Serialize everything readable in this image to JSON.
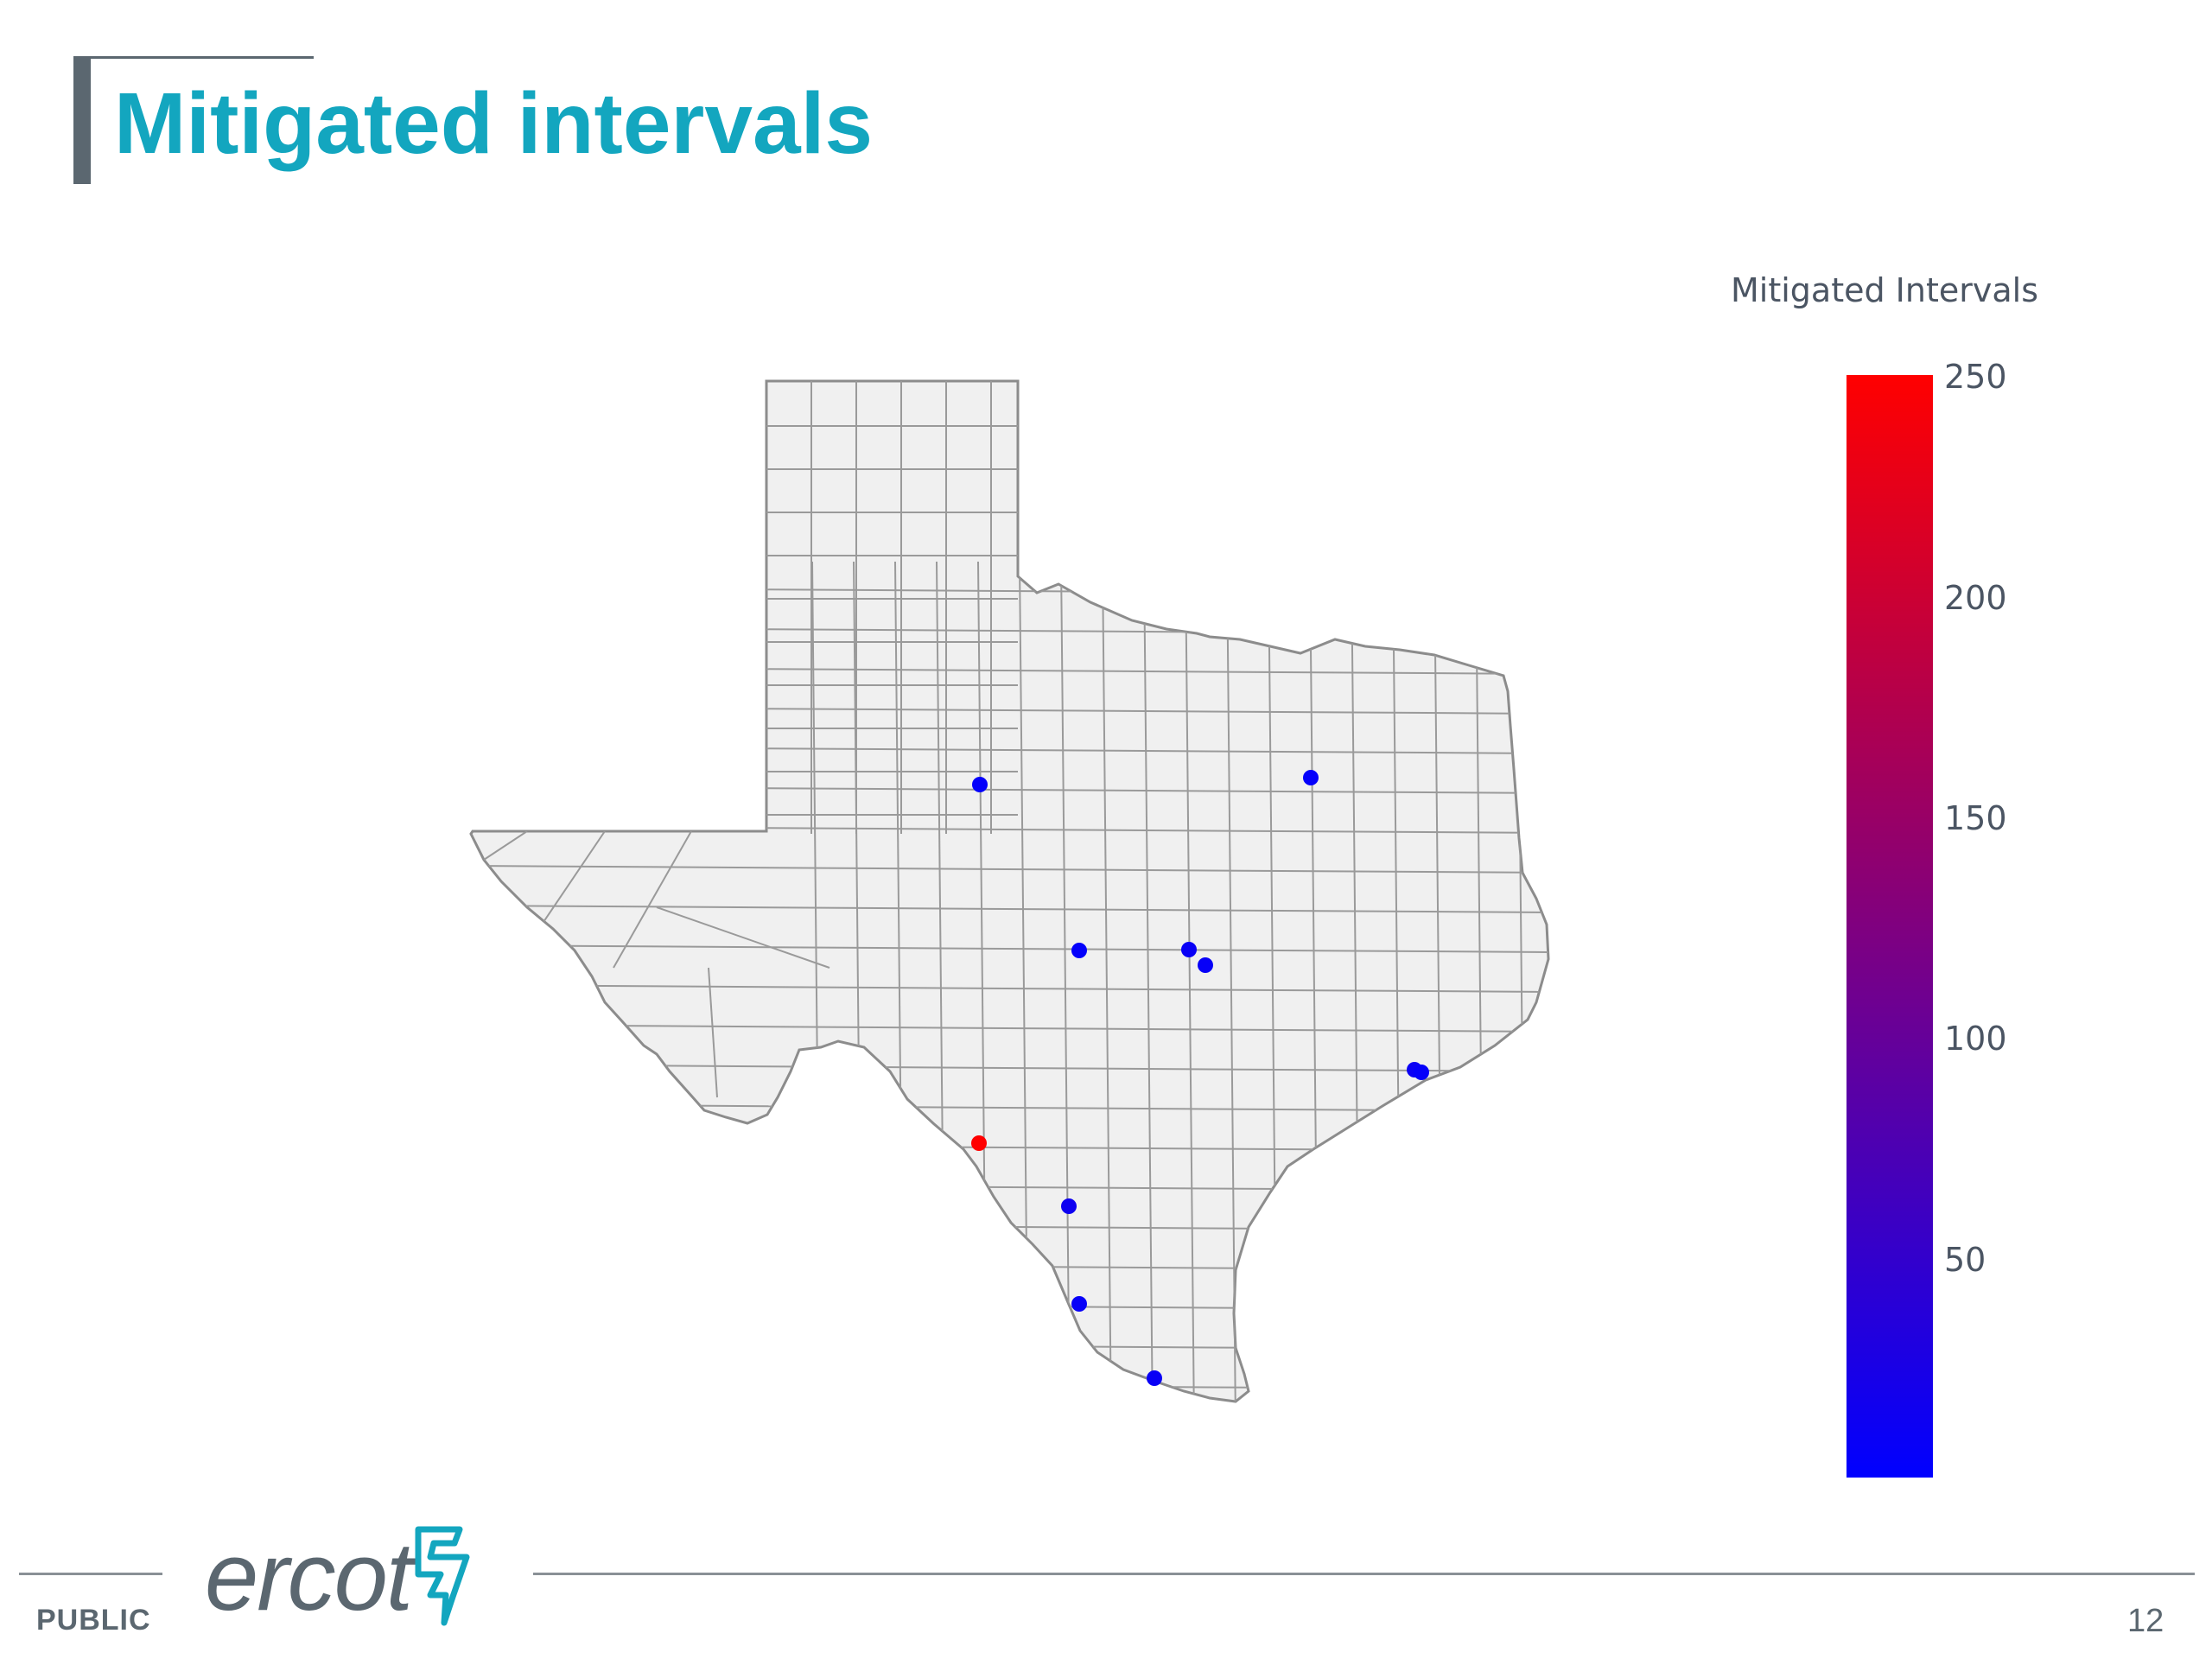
{
  "slide": {
    "title": "Mitigated intervals",
    "footer_label": "PUBLIC",
    "logo_text": "ercot",
    "page_number": "12"
  },
  "colors": {
    "title": "#13a6bf",
    "footer_text": "#5b6770",
    "map_fill": "#f0f0f0",
    "map_border": "#8c8c8c",
    "scale_low": "#0000ff",
    "scale_high": "#ff0000"
  },
  "chart_data": {
    "type": "scatter",
    "map_region": "Texas counties",
    "colorbar": {
      "title": "Mitigated Intervals",
      "ticks": [
        "250",
        "200",
        "150",
        "100",
        "50"
      ],
      "range": [
        1,
        250
      ],
      "colorscale": [
        "#0000ff",
        "#ff0000"
      ]
    },
    "points": [
      {
        "location": "Lubbock area",
        "value": 5
      },
      {
        "location": "Dallas–Fort Worth area",
        "value": 5
      },
      {
        "location": "Abilene area",
        "value": 5
      },
      {
        "location": "Killeen area",
        "value": 10
      },
      {
        "location": "Temple area",
        "value": 8
      },
      {
        "location": "Houston area",
        "value": 12
      },
      {
        "location": "Houston area",
        "value": 6
      },
      {
        "location": "Del Rio / Eagle Pass area",
        "value": 250
      },
      {
        "location": "Laredo area",
        "value": 15
      },
      {
        "location": "Zapata area",
        "value": 8
      },
      {
        "location": "Rio Grande Valley area",
        "value": 10
      }
    ]
  }
}
